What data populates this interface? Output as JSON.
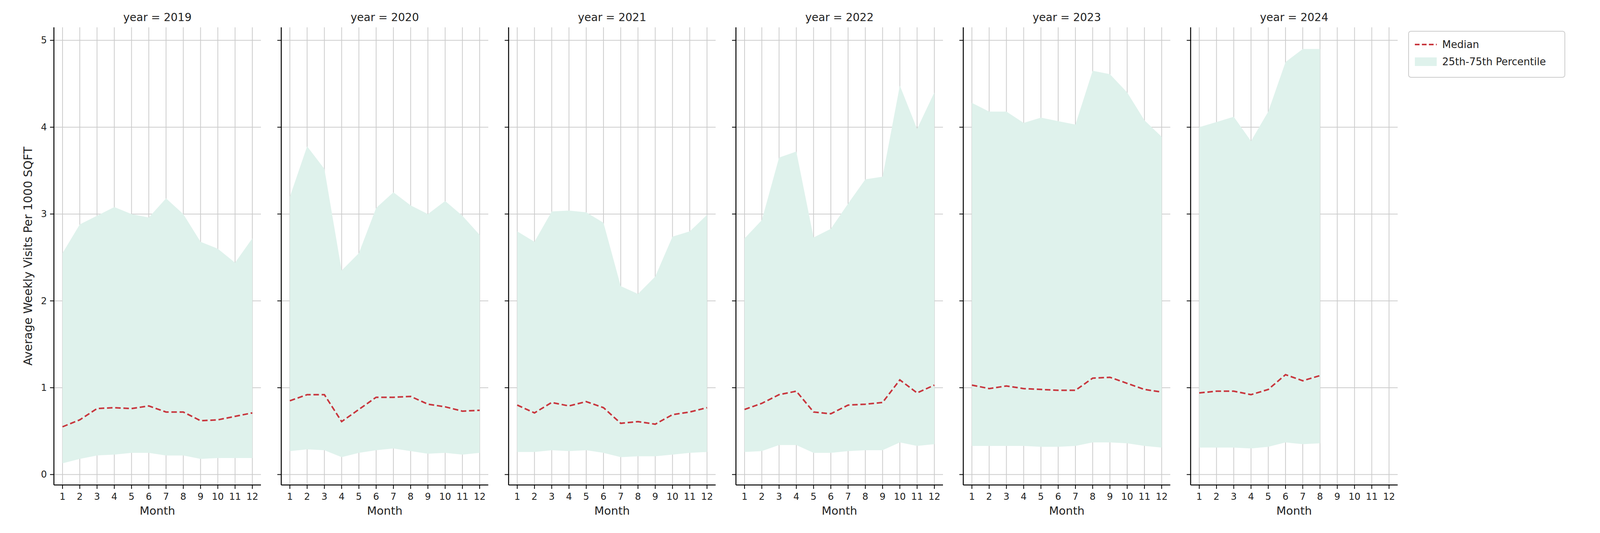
{
  "chart_data": [
    {
      "type": "line",
      "title": "year = 2019",
      "x_label": "Month",
      "y_label": "Average Weekly Visits Per 1000 SQFT",
      "x": [
        1,
        2,
        3,
        4,
        5,
        6,
        7,
        8,
        9,
        10,
        11,
        12
      ],
      "xlim": [
        0.5,
        12.5
      ],
      "xticks": [
        1,
        2,
        3,
        4,
        5,
        6,
        7,
        8,
        9,
        10,
        11,
        12
      ],
      "ylim": [
        -0.12,
        5.15
      ],
      "yticks": [
        0,
        1,
        2,
        3,
        4,
        5
      ],
      "grid": true,
      "series": [
        {
          "type": "line",
          "color": "#c8363d",
          "line_style": "dashed",
          "values": [
            0.55,
            0.63,
            0.76,
            0.77,
            0.76,
            0.79,
            0.72,
            0.72,
            0.62,
            0.63,
            0.67,
            0.71
          ]
        },
        {
          "type": "area",
          "color": "#dff2ec",
          "low": [
            0.13,
            0.18,
            0.22,
            0.23,
            0.25,
            0.25,
            0.22,
            0.22,
            0.18,
            0.19,
            0.19,
            0.19
          ],
          "high": [
            2.55,
            2.88,
            2.98,
            3.08,
            3.0,
            2.96,
            3.18,
            3.0,
            2.68,
            2.6,
            2.44,
            2.72
          ]
        }
      ]
    },
    {
      "type": "line",
      "title": "year = 2020",
      "x_label": "Month",
      "tick_labels": "x",
      "x": [
        1,
        2,
        3,
        4,
        5,
        6,
        7,
        8,
        9,
        10,
        11,
        12
      ],
      "xlim": [
        0.5,
        12.5
      ],
      "xticks": [
        1,
        2,
        3,
        4,
        5,
        6,
        7,
        8,
        9,
        10,
        11,
        12
      ],
      "ylim": [
        -0.12,
        5.15
      ],
      "yticks": [
        0,
        1,
        2,
        3,
        4,
        5
      ],
      "grid": true,
      "series": [
        {
          "type": "line",
          "color": "#c8363d",
          "line_style": "dashed",
          "values": [
            0.85,
            0.92,
            0.92,
            0.61,
            0.75,
            0.89,
            0.89,
            0.9,
            0.81,
            0.78,
            0.73,
            0.74
          ]
        },
        {
          "type": "area",
          "color": "#dff2ec",
          "low": [
            0.27,
            0.29,
            0.28,
            0.2,
            0.25,
            0.28,
            0.3,
            0.27,
            0.24,
            0.25,
            0.23,
            0.25
          ],
          "high": [
            3.2,
            3.78,
            3.52,
            2.35,
            2.55,
            3.07,
            3.25,
            3.1,
            3.0,
            3.15,
            2.98,
            2.76
          ]
        }
      ]
    },
    {
      "type": "line",
      "title": "year = 2021",
      "x_label": "Month",
      "tick_labels": "x",
      "x": [
        1,
        2,
        3,
        4,
        5,
        6,
        7,
        8,
        9,
        10,
        11,
        12
      ],
      "xlim": [
        0.5,
        12.5
      ],
      "xticks": [
        1,
        2,
        3,
        4,
        5,
        6,
        7,
        8,
        9,
        10,
        11,
        12
      ],
      "ylim": [
        -0.12,
        5.15
      ],
      "yticks": [
        0,
        1,
        2,
        3,
        4,
        5
      ],
      "grid": true,
      "series": [
        {
          "type": "line",
          "color": "#c8363d",
          "line_style": "dashed",
          "values": [
            0.8,
            0.71,
            0.83,
            0.79,
            0.84,
            0.77,
            0.59,
            0.61,
            0.58,
            0.69,
            0.72,
            0.77
          ]
        },
        {
          "type": "area",
          "color": "#dff2ec",
          "low": [
            0.26,
            0.26,
            0.28,
            0.27,
            0.28,
            0.25,
            0.2,
            0.21,
            0.21,
            0.23,
            0.25,
            0.26
          ],
          "high": [
            2.8,
            2.68,
            3.03,
            3.04,
            3.02,
            2.9,
            2.17,
            2.08,
            2.28,
            2.74,
            2.8,
            2.99
          ]
        }
      ]
    },
    {
      "type": "line",
      "title": "year = 2022",
      "x_label": "Month",
      "tick_labels": "x",
      "x": [
        1,
        2,
        3,
        4,
        5,
        6,
        7,
        8,
        9,
        10,
        11,
        12
      ],
      "xlim": [
        0.5,
        12.5
      ],
      "xticks": [
        1,
        2,
        3,
        4,
        5,
        6,
        7,
        8,
        9,
        10,
        11,
        12
      ],
      "ylim": [
        -0.12,
        5.15
      ],
      "yticks": [
        0,
        1,
        2,
        3,
        4,
        5
      ],
      "grid": true,
      "series": [
        {
          "type": "line",
          "color": "#c8363d",
          "line_style": "dashed",
          "values": [
            0.75,
            0.82,
            0.92,
            0.96,
            0.72,
            0.7,
            0.8,
            0.81,
            0.83,
            1.09,
            0.94,
            1.03
          ]
        },
        {
          "type": "area",
          "color": "#dff2ec",
          "low": [
            0.26,
            0.27,
            0.34,
            0.34,
            0.25,
            0.25,
            0.27,
            0.28,
            0.28,
            0.37,
            0.33,
            0.35
          ],
          "high": [
            2.72,
            2.93,
            3.65,
            3.72,
            2.73,
            2.83,
            3.12,
            3.4,
            3.43,
            4.48,
            3.98,
            4.4
          ]
        }
      ]
    },
    {
      "type": "line",
      "title": "year = 2023",
      "x_label": "Month",
      "tick_labels": "x",
      "x": [
        1,
        2,
        3,
        4,
        5,
        6,
        7,
        8,
        9,
        10,
        11,
        12
      ],
      "xlim": [
        0.5,
        12.5
      ],
      "xticks": [
        1,
        2,
        3,
        4,
        5,
        6,
        7,
        8,
        9,
        10,
        11,
        12
      ],
      "ylim": [
        -0.12,
        5.15
      ],
      "yticks": [
        0,
        1,
        2,
        3,
        4,
        5
      ],
      "grid": true,
      "series": [
        {
          "type": "line",
          "color": "#c8363d",
          "line_style": "dashed",
          "values": [
            1.03,
            0.99,
            1.02,
            0.99,
            0.98,
            0.97,
            0.97,
            1.11,
            1.12,
            1.05,
            0.98,
            0.95
          ]
        },
        {
          "type": "area",
          "color": "#dff2ec",
          "low": [
            0.33,
            0.33,
            0.33,
            0.33,
            0.32,
            0.32,
            0.33,
            0.37,
            0.37,
            0.36,
            0.33,
            0.31
          ],
          "high": [
            4.28,
            4.18,
            4.18,
            4.05,
            4.11,
            4.07,
            4.03,
            4.65,
            4.61,
            4.4,
            4.08,
            3.89
          ]
        }
      ]
    },
    {
      "type": "line",
      "title": "year = 2024",
      "x_label": "Month",
      "tick_labels": "x",
      "legend": "right",
      "x": [
        1,
        2,
        3,
        4,
        5,
        6,
        7,
        8
      ],
      "xlim": [
        0.5,
        12.5
      ],
      "xticks": [
        1,
        2,
        3,
        4,
        5,
        6,
        7,
        8,
        9,
        10,
        11,
        12
      ],
      "ylim": [
        -0.12,
        5.15
      ],
      "yticks": [
        0,
        1,
        2,
        3,
        4,
        5
      ],
      "grid": true,
      "series": [
        {
          "name": "Median",
          "type": "line",
          "color": "#c8363d",
          "line_style": "dashed",
          "values": [
            0.94,
            0.96,
            0.96,
            0.92,
            0.98,
            1.15,
            1.08,
            1.14
          ]
        },
        {
          "name": "25th-75th Percentile",
          "type": "area",
          "color": "#dff2ec",
          "low": [
            0.31,
            0.31,
            0.31,
            0.3,
            0.32,
            0.37,
            0.35,
            0.36
          ],
          "high": [
            4.0,
            4.06,
            4.12,
            3.84,
            4.18,
            4.75,
            4.9,
            4.9
          ]
        }
      ]
    }
  ]
}
